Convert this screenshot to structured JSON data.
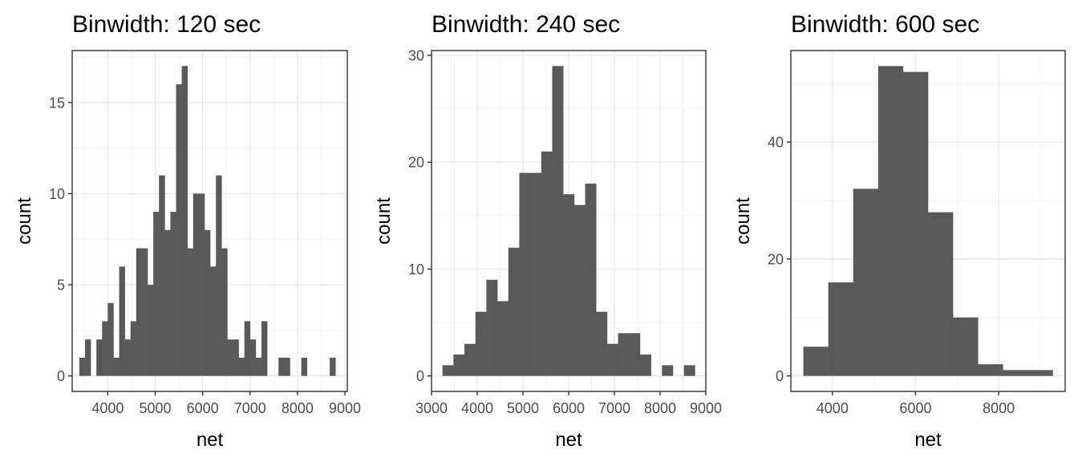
{
  "chart_data": [
    {
      "type": "bar",
      "title": "Binwidth: 120 sec",
      "xlabel": "net",
      "ylabel": "count",
      "binwidth": 120,
      "xlim": [
        3250,
        9050
      ],
      "ylim": [
        -0.85,
        17.85
      ],
      "x_ticks": [
        4000,
        5000,
        6000,
        7000,
        8000,
        9000
      ],
      "x_tick_labels": [
        "4000",
        "5000",
        "6000",
        "7000",
        "8000",
        "9000"
      ],
      "y_ticks": [
        0,
        5,
        10,
        15
      ],
      "y_tick_labels": [
        "0",
        "5",
        "10",
        "15"
      ],
      "grid": true,
      "bin_starts": [
        3400,
        3520,
        3640,
        3760,
        3880,
        4000,
        4120,
        4240,
        4360,
        4480,
        4600,
        4720,
        4840,
        4960,
        5080,
        5200,
        5320,
        5440,
        5560,
        5680,
        5800,
        5920,
        6040,
        6160,
        6280,
        6400,
        6520,
        6640,
        6760,
        6880,
        7000,
        7120,
        7240,
        7360,
        7480,
        7600,
        7720,
        7840,
        7960,
        8080,
        8200,
        8320,
        8440,
        8560,
        8680
      ],
      "values": [
        1,
        2,
        0,
        2,
        3,
        4,
        1,
        6,
        2,
        3,
        7,
        7,
        5,
        9,
        11,
        8,
        9,
        16,
        17,
        7,
        10,
        10,
        8,
        6,
        11,
        7,
        2,
        2,
        1,
        3,
        2,
        1,
        3,
        0,
        0,
        1,
        1,
        0,
        0,
        1,
        0,
        0,
        0,
        0,
        1
      ]
    },
    {
      "type": "bar",
      "title": "Binwidth: 240 sec",
      "xlabel": "net",
      "ylabel": "count",
      "binwidth": 240,
      "xlim": [
        3000,
        9000
      ],
      "ylim": [
        -1.45,
        30.45
      ],
      "x_ticks": [
        3000,
        4000,
        5000,
        6000,
        7000,
        8000,
        9000
      ],
      "x_tick_labels": [
        "3000",
        "4000",
        "5000",
        "6000",
        "7000",
        "8000",
        "9000"
      ],
      "y_ticks": [
        0,
        10,
        20,
        30
      ],
      "y_tick_labels": [
        "0",
        "10",
        "20",
        "30"
      ],
      "grid": true,
      "bin_starts": [
        3240,
        3480,
        3720,
        3960,
        4200,
        4440,
        4680,
        4920,
        5160,
        5400,
        5640,
        5880,
        6120,
        6360,
        6600,
        6840,
        7080,
        7320,
        7560,
        7800,
        8040,
        8280,
        8520
      ],
      "values": [
        1,
        2,
        3,
        6,
        9,
        7,
        12,
        19,
        19,
        21,
        29,
        17,
        16,
        18,
        6,
        3,
        4,
        4,
        2,
        0,
        1,
        0,
        1
      ]
    },
    {
      "type": "bar",
      "title": "Binwidth: 600 sec",
      "xlabel": "net",
      "ylabel": "count",
      "binwidth": 600,
      "xlim": [
        3000,
        9600
      ],
      "ylim": [
        -2.65,
        55.65
      ],
      "x_ticks": [
        4000,
        6000,
        8000
      ],
      "x_tick_labels": [
        "4000",
        "6000",
        "8000"
      ],
      "y_ticks": [
        0,
        20,
        40
      ],
      "y_tick_labels": [
        "0",
        "20",
        "40"
      ],
      "grid": true,
      "bin_starts": [
        3300,
        3900,
        4500,
        5100,
        5700,
        6300,
        6900,
        7500,
        8100,
        8700
      ],
      "values": [
        5,
        16,
        32,
        53,
        52,
        28,
        10,
        2,
        1,
        1
      ]
    }
  ]
}
